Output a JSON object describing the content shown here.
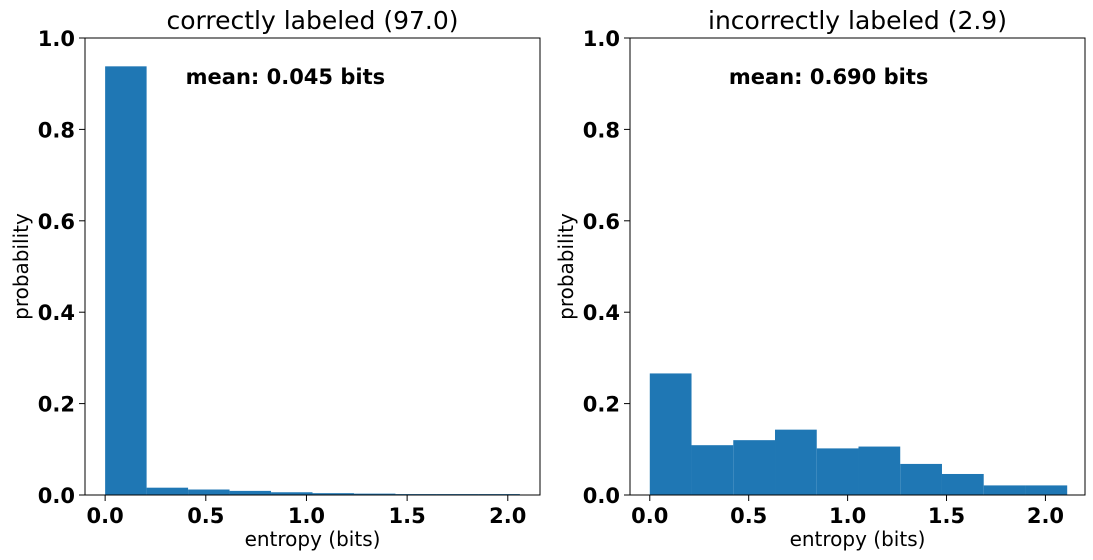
{
  "chart_data": [
    {
      "type": "bar",
      "title": "correctly labeled (97.0)",
      "xlabel": "entropy (bits)",
      "ylabel": "probability",
      "annotation": "mean: 0.045 bits",
      "xlim": [
        -0.1,
        2.16
      ],
      "ylim": [
        0.0,
        1.0
      ],
      "xticks": [
        0.0,
        0.5,
        1.0,
        1.5,
        2.0
      ],
      "xtick_labels": [
        "0.0",
        "0.5",
        "1.0",
        "1.5",
        "2.0"
      ],
      "yticks": [
        0.0,
        0.2,
        0.4,
        0.6,
        0.8,
        1.0
      ],
      "ytick_labels": [
        "0.0",
        "0.2",
        "0.4",
        "0.6",
        "0.8",
        "1.0"
      ],
      "bin_edges": [
        0.0,
        0.206,
        0.412,
        0.618,
        0.824,
        1.03,
        1.236,
        1.442,
        1.648,
        1.854,
        2.06
      ],
      "values": [
        0.938,
        0.016,
        0.012,
        0.009,
        0.006,
        0.004,
        0.003,
        0.002,
        0.002,
        0.002
      ],
      "color": "#1f77b4",
      "grid": false
    },
    {
      "type": "bar",
      "title": "incorrectly labeled (2.9)",
      "xlabel": "entropy (bits)",
      "ylabel": "probability",
      "annotation": "mean: 0.690 bits",
      "xlim": [
        -0.1,
        2.2
      ],
      "ylim": [
        0.0,
        1.0
      ],
      "xticks": [
        0.0,
        0.5,
        1.0,
        1.5,
        2.0
      ],
      "xtick_labels": [
        "0.0",
        "0.5",
        "1.0",
        "1.5",
        "2.0"
      ],
      "yticks": [
        0.0,
        0.2,
        0.4,
        0.6,
        0.8,
        1.0
      ],
      "ytick_labels": [
        "0.0",
        "0.2",
        "0.4",
        "0.6",
        "0.8",
        "1.0"
      ],
      "bin_edges": [
        0.0,
        0.211,
        0.422,
        0.633,
        0.844,
        1.055,
        1.266,
        1.477,
        1.688,
        1.899,
        2.11
      ],
      "values": [
        0.266,
        0.109,
        0.12,
        0.143,
        0.102,
        0.106,
        0.068,
        0.046,
        0.021,
        0.021
      ],
      "color": "#1f77b4",
      "grid": false
    }
  ]
}
